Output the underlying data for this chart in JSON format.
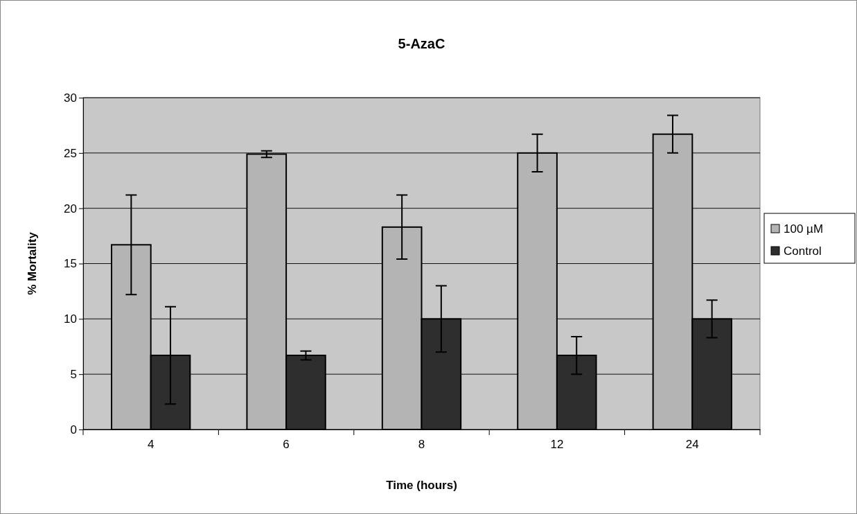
{
  "chart_data": {
    "type": "bar",
    "title": "5-AzaC",
    "xlabel": "Time (hours)",
    "ylabel": "% Mortality",
    "categories": [
      "4",
      "6",
      "8",
      "12",
      "24"
    ],
    "series": [
      {
        "name": "100 µM",
        "color": "#b4b4b4",
        "values": [
          16.7,
          24.9,
          18.3,
          25.0,
          26.7
        ],
        "errors": [
          4.5,
          0.3,
          2.9,
          1.7,
          1.7
        ]
      },
      {
        "name": "Control",
        "color": "#2e2e2e",
        "values": [
          6.7,
          6.7,
          10.0,
          6.7,
          10.0
        ],
        "errors": [
          4.4,
          0.4,
          3.0,
          1.7,
          1.7
        ]
      }
    ],
    "ylim": [
      0,
      30
    ],
    "yticks": [
      0,
      5,
      10,
      15,
      20,
      25,
      30
    ],
    "grid": "y",
    "legend": "right"
  }
}
